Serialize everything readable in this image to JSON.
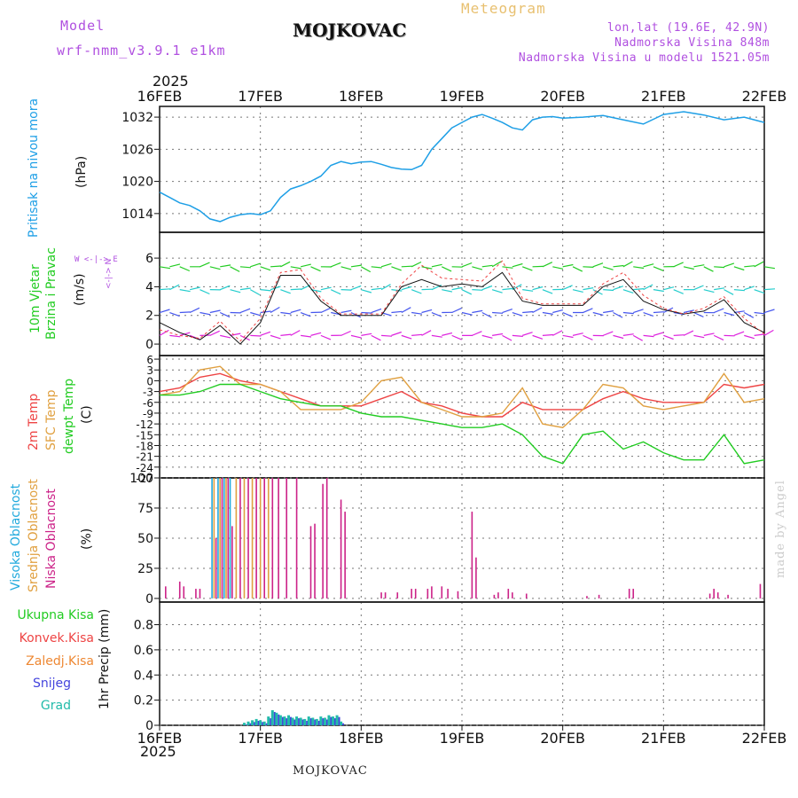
{
  "header": {
    "model_label": "Model",
    "model_name": "wrf-nmm_v3.9.1 e1km",
    "station": "MOJKOVAC",
    "product": "Meteogram",
    "lonlat": "lon,lat (19.6E, 42.9N)",
    "elevation": "Nadmorska Visina 848m",
    "model_elevation": "Nadmorska Visina u modelu 1521.05m",
    "year": "2025",
    "credit": "made by Angel",
    "footer_station": "MOJKOVAC"
  },
  "colors": {
    "pressure": "#1e9fe6",
    "temp2m": "#ee4444",
    "sfc_temp": "#e0a040",
    "dewpoint": "#22cc22",
    "cloud_high": "#22aadd",
    "cloud_mid": "#e0a040",
    "cloud_low": "#cc2288",
    "precip_total": "#22cc22",
    "precip_conv": "#ee4444",
    "precip_frozen": "#ee8833",
    "precip_snow": "#4444dd",
    "precip_hail": "#22bbaa"
  },
  "chart_data": [
    {
      "type": "line",
      "name": "pressure",
      "ylabel_title": "Pritisak na nivou mora",
      "ylabel_unit": "(hPa)",
      "x_ticks": [
        "16FEB",
        "17FEB",
        "18FEB",
        "19FEB",
        "20FEB",
        "21FEB",
        "22FEB"
      ],
      "y_ticks": [
        1014,
        1020,
        1026,
        1032
      ],
      "ylim": [
        1010.5,
        1034
      ],
      "x": [
        0,
        0.1,
        0.2,
        0.3,
        0.4,
        0.5,
        0.6,
        0.7,
        0.8,
        0.9,
        1.0,
        1.1,
        1.2,
        1.3,
        1.4,
        1.5,
        1.6,
        1.7,
        1.8,
        1.9,
        2.0,
        2.1,
        2.2,
        2.3,
        2.4,
        2.5,
        2.6,
        2.7,
        2.8,
        2.9,
        3.0,
        3.1,
        3.2,
        3.3,
        3.4,
        3.5,
        3.6,
        3.7,
        3.8,
        3.9,
        4.0,
        4.2,
        4.4,
        4.6,
        4.8,
        5.0,
        5.2,
        5.4,
        5.6,
        5.8,
        6.0
      ],
      "values": [
        1018,
        1017,
        1016,
        1015.5,
        1014.5,
        1013,
        1012.5,
        1013.3,
        1013.8,
        1014,
        1013.8,
        1014.5,
        1017,
        1018.6,
        1019.2,
        1020,
        1021,
        1023,
        1023.7,
        1023.3,
        1023.6,
        1023.7,
        1023.2,
        1022.6,
        1022.3,
        1022.2,
        1023,
        1026,
        1028,
        1030,
        1031,
        1032,
        1032.5,
        1031.8,
        1031,
        1030,
        1029.6,
        1031.5,
        1032,
        1032.1,
        1031.8,
        1032,
        1032.3,
        1031.5,
        1030.7,
        1032.5,
        1033,
        1032.4,
        1031.5,
        1032,
        1031
      ]
    },
    {
      "type": "wind",
      "name": "wind",
      "ylabel_title": "10m Vjetar",
      "ylabel_title2": "Brzina i Pravac",
      "ylabel_unit": "(m/s)",
      "compass": [
        "W",
        "<-|->",
        "E"
      ],
      "compass_v": [
        "N",
        "<-|->",
        "S"
      ],
      "y_ticks": [
        0,
        2,
        4,
        6
      ],
      "ylim": [
        -0.8,
        7.8
      ],
      "x": [
        0,
        0.2,
        0.4,
        0.6,
        0.8,
        1.0,
        1.2,
        1.4,
        1.6,
        1.8,
        2.0,
        2.2,
        2.4,
        2.6,
        2.8,
        3.0,
        3.2,
        3.4,
        3.6,
        3.8,
        4.0,
        4.2,
        4.4,
        4.6,
        4.8,
        5.0,
        5.2,
        5.4,
        5.6,
        5.8,
        6.0
      ],
      "speed": [
        1.5,
        0.8,
        0.3,
        1.3,
        0,
        1.5,
        4.8,
        4.8,
        3.0,
        2.0,
        2.0,
        2.0,
        4.0,
        4.5,
        4.0,
        4.2,
        4.0,
        5.0,
        3.0,
        2.7,
        2.7,
        2.7,
        4.0,
        4.5,
        3.0,
        2.4,
        2.1,
        2.3,
        3.1,
        1.5,
        0.8
      ],
      "gust": [
        1.0,
        0.6,
        0.4,
        1.6,
        0.2,
        1.8,
        5.0,
        5.2,
        3.2,
        2.1,
        2.1,
        2.1,
        4.2,
        5.5,
        4.6,
        4.5,
        4.4,
        5.8,
        3.2,
        2.8,
        2.8,
        2.8,
        4.2,
        5.0,
        3.4,
        2.5,
        2.1,
        2.5,
        3.3,
        1.8,
        0.7
      ]
    },
    {
      "type": "line",
      "name": "temperature",
      "ylabel_titles": [
        "2m Temp",
        "SFC Temp",
        "dewpt Temp"
      ],
      "ylabel_unit": "(C)",
      "y_ticks": [
        6,
        3,
        0,
        -3,
        -6,
        -9,
        -12,
        -15,
        -18,
        -21,
        -24,
        -27
      ],
      "ylim": [
        -27,
        7
      ],
      "x": [
        0,
        0.2,
        0.4,
        0.6,
        0.8,
        1.0,
        1.2,
        1.4,
        1.6,
        1.8,
        2.0,
        2.2,
        2.4,
        2.6,
        2.8,
        3.0,
        3.2,
        3.4,
        3.6,
        3.8,
        4.0,
        4.2,
        4.4,
        4.6,
        4.8,
        5.0,
        5.2,
        5.4,
        5.6,
        5.8,
        6.0
      ],
      "series": [
        {
          "name": "2m Temp",
          "values": [
            -3,
            -2,
            1,
            2,
            0,
            -1,
            -3,
            -5,
            -7,
            -7,
            -7,
            -5,
            -3,
            -6,
            -7,
            -9,
            -10,
            -10,
            -6,
            -8,
            -8,
            -8,
            -5,
            -3,
            -5,
            -6,
            -6,
            -6,
            -1,
            -2,
            -1
          ]
        },
        {
          "name": "SFC Temp",
          "values": [
            -4,
            -3,
            3,
            4,
            -1,
            -1,
            -3,
            -8,
            -8,
            -8,
            -6,
            0,
            1,
            -6,
            -8,
            -10,
            -10,
            -9,
            -2,
            -12,
            -13,
            -8,
            -1,
            -2,
            -7,
            -8,
            -7,
            -6,
            2,
            -6,
            -5
          ]
        },
        {
          "name": "dewpt Temp",
          "values": [
            -4,
            -4,
            -3,
            -1,
            -1,
            -3,
            -5,
            -6,
            -7,
            -7,
            -9,
            -10,
            -10,
            -11,
            -12,
            -13,
            -13,
            -12,
            -15,
            -21,
            -23,
            -15,
            -14,
            -19,
            -17,
            -20,
            -22,
            -22,
            -15,
            -23,
            -22
          ]
        }
      ]
    },
    {
      "type": "bar",
      "name": "clouds",
      "ylabel_titles": [
        "Visoka Oblacnost",
        "Srednja Oblacnost",
        "Niska Oblacnost"
      ],
      "ylabel_unit": "(%)",
      "y_ticks": [
        0,
        25,
        50,
        75,
        100
      ],
      "ylim": [
        -3,
        100
      ],
      "x_ticks": [
        "16FEB",
        "17FEB",
        "18FEB",
        "19FEB",
        "20FEB",
        "21FEB",
        "22FEB"
      ],
      "year": "2025",
      "bars": [
        {
          "x": 0.06,
          "kind": "low",
          "v": 10
        },
        {
          "x": 0.2,
          "kind": "low",
          "v": 14
        },
        {
          "x": 0.24,
          "kind": "low",
          "v": 10
        },
        {
          "x": 0.36,
          "kind": "low",
          "v": 8
        },
        {
          "x": 0.4,
          "kind": "low",
          "v": 8
        },
        {
          "x": 0.52,
          "kind": "high",
          "v": 100
        },
        {
          "x": 0.54,
          "kind": "mid",
          "v": 100
        },
        {
          "x": 0.56,
          "kind": "low",
          "v": 50
        },
        {
          "x": 0.58,
          "kind": "high",
          "v": 100
        },
        {
          "x": 0.6,
          "kind": "mid",
          "v": 100
        },
        {
          "x": 0.62,
          "kind": "low",
          "v": 100
        },
        {
          "x": 0.64,
          "kind": "high",
          "v": 100
        },
        {
          "x": 0.66,
          "kind": "mid",
          "v": 100
        },
        {
          "x": 0.68,
          "kind": "low",
          "v": 100
        },
        {
          "x": 0.7,
          "kind": "high",
          "v": 100
        },
        {
          "x": 0.72,
          "kind": "low",
          "v": 60
        },
        {
          "x": 0.76,
          "kind": "mid",
          "v": 100
        },
        {
          "x": 0.8,
          "kind": "low",
          "v": 100
        },
        {
          "x": 0.84,
          "kind": "mid",
          "v": 100
        },
        {
          "x": 0.88,
          "kind": "low",
          "v": 100
        },
        {
          "x": 0.92,
          "kind": "mid",
          "v": 100
        },
        {
          "x": 0.96,
          "kind": "low",
          "v": 100
        },
        {
          "x": 1.0,
          "kind": "mid",
          "v": 100
        },
        {
          "x": 1.04,
          "kind": "low",
          "v": 100
        },
        {
          "x": 1.08,
          "kind": "mid",
          "v": 100
        },
        {
          "x": 1.12,
          "kind": "low",
          "v": 100
        },
        {
          "x": 1.18,
          "kind": "low",
          "v": 100
        },
        {
          "x": 1.26,
          "kind": "low",
          "v": 100
        },
        {
          "x": 1.36,
          "kind": "low",
          "v": 100
        },
        {
          "x": 1.5,
          "kind": "low",
          "v": 60
        },
        {
          "x": 1.54,
          "kind": "low",
          "v": 62
        },
        {
          "x": 1.62,
          "kind": "low",
          "v": 95
        },
        {
          "x": 1.66,
          "kind": "low",
          "v": 100
        },
        {
          "x": 1.8,
          "kind": "low",
          "v": 82
        },
        {
          "x": 1.84,
          "kind": "low",
          "v": 72
        },
        {
          "x": 2.2,
          "kind": "low",
          "v": 5
        },
        {
          "x": 2.24,
          "kind": "low",
          "v": 5
        },
        {
          "x": 2.36,
          "kind": "low",
          "v": 5
        },
        {
          "x": 2.5,
          "kind": "low",
          "v": 8
        },
        {
          "x": 2.54,
          "kind": "low",
          "v": 8
        },
        {
          "x": 2.66,
          "kind": "low",
          "v": 8
        },
        {
          "x": 2.7,
          "kind": "low",
          "v": 10
        },
        {
          "x": 2.8,
          "kind": "low",
          "v": 10
        },
        {
          "x": 2.86,
          "kind": "low",
          "v": 8
        },
        {
          "x": 2.96,
          "kind": "low",
          "v": 6
        },
        {
          "x": 3.1,
          "kind": "low",
          "v": 72
        },
        {
          "x": 3.14,
          "kind": "low",
          "v": 34
        },
        {
          "x": 3.32,
          "kind": "low",
          "v": 3
        },
        {
          "x": 3.36,
          "kind": "low",
          "v": 5
        },
        {
          "x": 3.46,
          "kind": "low",
          "v": 8
        },
        {
          "x": 3.5,
          "kind": "low",
          "v": 5
        },
        {
          "x": 3.64,
          "kind": "low",
          "v": 4
        },
        {
          "x": 4.24,
          "kind": "low",
          "v": 2
        },
        {
          "x": 4.36,
          "kind": "low",
          "v": 3
        },
        {
          "x": 4.66,
          "kind": "low",
          "v": 8
        },
        {
          "x": 4.7,
          "kind": "low",
          "v": 8
        },
        {
          "x": 5.46,
          "kind": "low",
          "v": 4
        },
        {
          "x": 5.5,
          "kind": "low",
          "v": 8
        },
        {
          "x": 5.54,
          "kind": "low",
          "v": 5
        },
        {
          "x": 5.64,
          "kind": "low",
          "v": 3
        },
        {
          "x": 5.96,
          "kind": "low",
          "v": 12
        }
      ]
    },
    {
      "type": "bar",
      "name": "precip",
      "ylabel_titles": [
        "Ukupna Kisa",
        "Konvek.Kisa",
        "Zaledj.Kisa",
        "Snijeg",
        "Grad"
      ],
      "ylabel_unit": "1hr Precip (mm)",
      "y_ticks": [
        0,
        0.2,
        0.4,
        0.6,
        0.8
      ],
      "ylim": [
        0,
        0.98
      ],
      "bars": [
        {
          "x": 0.84,
          "v": 0.02
        },
        {
          "x": 0.88,
          "v": 0.03
        },
        {
          "x": 0.92,
          "v": 0.04
        },
        {
          "x": 0.96,
          "v": 0.05
        },
        {
          "x": 1.0,
          "v": 0.04
        },
        {
          "x": 1.04,
          "v": 0.03
        },
        {
          "x": 1.08,
          "v": 0.07
        },
        {
          "x": 1.12,
          "v": 0.12
        },
        {
          "x": 1.16,
          "v": 0.1
        },
        {
          "x": 1.2,
          "v": 0.08
        },
        {
          "x": 1.24,
          "v": 0.07
        },
        {
          "x": 1.28,
          "v": 0.08
        },
        {
          "x": 1.32,
          "v": 0.06
        },
        {
          "x": 1.36,
          "v": 0.07
        },
        {
          "x": 1.4,
          "v": 0.06
        },
        {
          "x": 1.44,
          "v": 0.05
        },
        {
          "x": 1.48,
          "v": 0.07
        },
        {
          "x": 1.52,
          "v": 0.06
        },
        {
          "x": 1.56,
          "v": 0.05
        },
        {
          "x": 1.6,
          "v": 0.07
        },
        {
          "x": 1.64,
          "v": 0.06
        },
        {
          "x": 1.68,
          "v": 0.08
        },
        {
          "x": 1.72,
          "v": 0.07
        },
        {
          "x": 1.76,
          "v": 0.08
        },
        {
          "x": 1.8,
          "v": 0.03
        }
      ]
    }
  ]
}
